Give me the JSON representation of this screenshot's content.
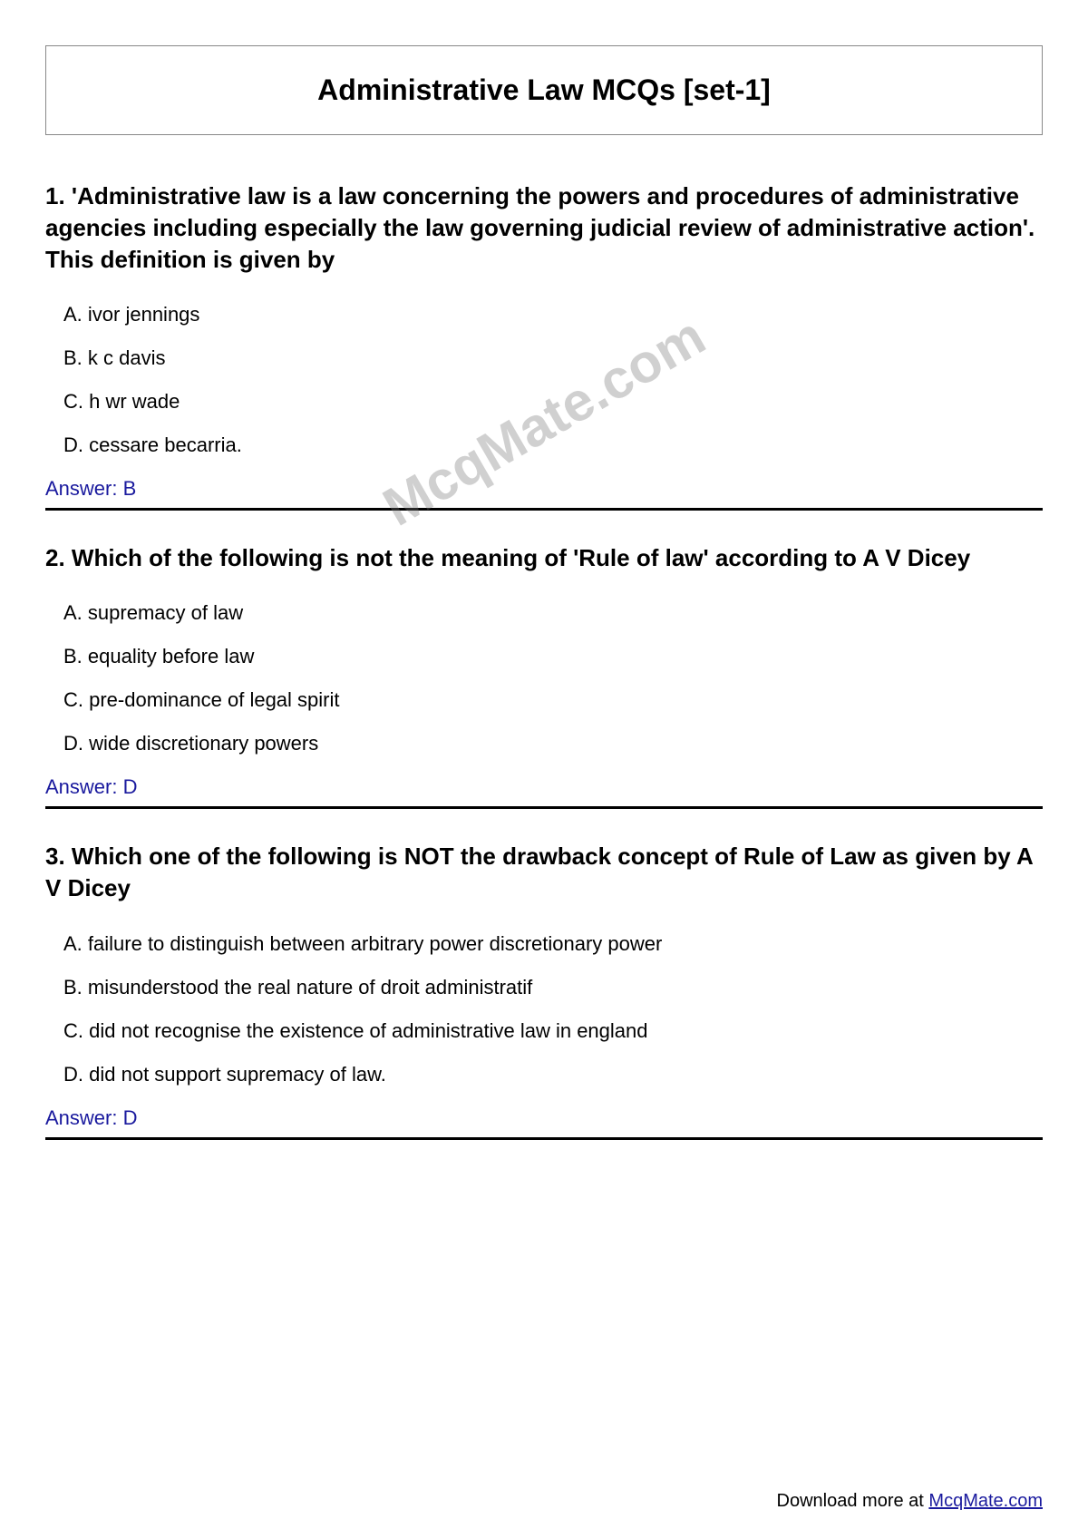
{
  "page": {
    "title": "Administrative Law MCQs [set-1]",
    "watermark": "McqMate.com",
    "footer_prefix": "Download more at ",
    "footer_link": "McqMate.com",
    "answer_label": "Answer: "
  },
  "styling": {
    "title_fontsize": 32,
    "question_fontsize": 26,
    "option_fontsize": 22,
    "answer_fontsize": 22,
    "answer_color": "#1a1a9e",
    "text_color": "#000000",
    "watermark_color": "rgba(120,120,120,0.35)",
    "divider_color": "#000000",
    "divider_width": 3,
    "background_color": "#ffffff",
    "border_color": "#888888",
    "link_color": "#1a1a9e"
  },
  "questions": [
    {
      "number": "1.",
      "text": "'Administrative law is a law concerning the powers and procedures of administrative agencies including especially the law governing judicial review of administrative action'. This definition is given by",
      "options": {
        "A": "ivor jennings",
        "B": "k c davis",
        "C": "h wr wade",
        "D": "cessare becarria."
      },
      "answer": "B"
    },
    {
      "number": "2.",
      "text": "Which of the following is not the meaning of 'Rule of law' according to A V Dicey",
      "options": {
        "A": "supremacy of law",
        "B": "equality before law",
        "C": "pre-dominance of legal spirit",
        "D": "wide discretionary powers"
      },
      "answer": "D"
    },
    {
      "number": "3.",
      "text": "Which one of the following is NOT the drawback concept of Rule of Law as given by A V Dicey",
      "options": {
        "A": "failure to distinguish between arbitrary power discretionary power",
        "B": "misunderstood the real nature of droit administratif",
        "C": "did not recognise the existence of administrative law in england",
        "D": "did not support supremacy of law."
      },
      "answer": "D"
    }
  ]
}
